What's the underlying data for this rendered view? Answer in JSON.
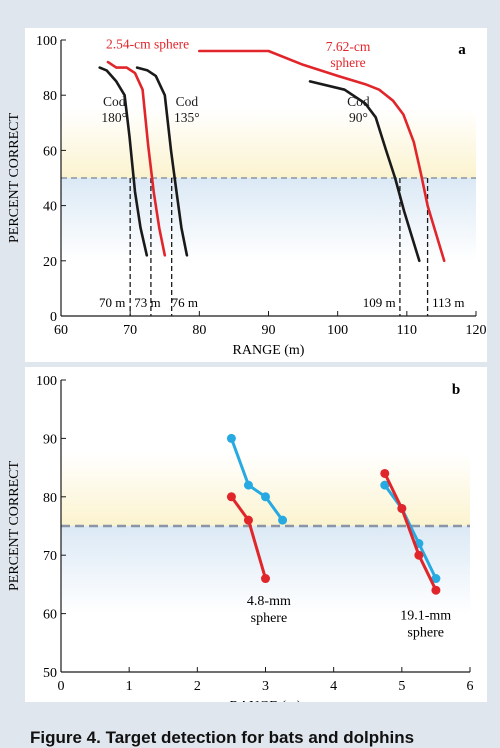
{
  "caption": "Figure 4. Target detection for bats and dolphins",
  "colors": {
    "red": "#e1262b",
    "black": "#1a1a1a",
    "blue": "#27aae1",
    "threshold_dash": "#8a96a6",
    "band_yellow": "#fbf3cf",
    "band_blue": "#dbe9f5"
  },
  "chart_data": [
    {
      "type": "line",
      "panel_label": "a",
      "xlabel": "RANGE (m)",
      "ylabel": "PERCENT CORRECT",
      "xlim": [
        60,
        120
      ],
      "ylim": [
        0,
        100
      ],
      "xticks": [
        60,
        70,
        80,
        90,
        100,
        110,
        120
      ],
      "yticks": [
        0,
        20,
        40,
        60,
        80,
        100
      ],
      "threshold": 50,
      "grid": false,
      "series": [
        {
          "name": "2.54-cm sphere",
          "color": "red",
          "points": [
            [
              66.8,
              92
            ],
            [
              68.0,
              90
            ],
            [
              69.5,
              90
            ],
            [
              70.7,
              88
            ],
            [
              71.8,
              82
            ],
            [
              72.6,
              62
            ],
            [
              73.4,
              45
            ],
            [
              74.2,
              32
            ],
            [
              75.0,
              22
            ]
          ]
        },
        {
          "name": "Cod 180°",
          "color": "black",
          "points": [
            [
              65.6,
              90
            ],
            [
              66.6,
              89
            ],
            [
              68.0,
              85
            ],
            [
              69.2,
              80
            ],
            [
              69.9,
              65
            ],
            [
              70.7,
              45
            ],
            [
              71.5,
              32
            ],
            [
              72.4,
              22
            ]
          ]
        },
        {
          "name": "Cod 135°",
          "color": "black",
          "points": [
            [
              71.0,
              90
            ],
            [
              72.5,
              89
            ],
            [
              73.7,
              87
            ],
            [
              75.0,
              80
            ],
            [
              75.9,
              60
            ],
            [
              76.7,
              45
            ],
            [
              77.4,
              32
            ],
            [
              78.2,
              22
            ]
          ]
        },
        {
          "name": "7.62-cm sphere",
          "color": "red",
          "points": [
            [
              80,
              96
            ],
            [
              90,
              96
            ],
            [
              95,
              91
            ],
            [
              100,
              87
            ],
            [
              104,
              84
            ],
            [
              106,
              82
            ],
            [
              108,
              78
            ],
            [
              109.5,
              73
            ],
            [
              111,
              63
            ],
            [
              112,
              52
            ],
            [
              113,
              40
            ],
            [
              114.2,
              30
            ],
            [
              115.4,
              20
            ]
          ]
        },
        {
          "name": "Cod 90°",
          "color": "black",
          "points": [
            [
              96,
              85
            ],
            [
              101,
              82
            ],
            [
              104,
              77
            ],
            [
              105.5,
              72
            ],
            [
              107,
              60
            ],
            [
              108.3,
              50
            ],
            [
              109.6,
              38
            ],
            [
              110.7,
              29
            ],
            [
              111.8,
              20
            ]
          ]
        }
      ],
      "series_labels": [
        {
          "series": 0,
          "lines": [
            "2.54-cm sphere"
          ],
          "x": 66.5,
          "y": 97
        },
        {
          "series": 1,
          "lines": [
            "Cod",
            "180°"
          ],
          "x": 67.7,
          "y": 76
        },
        {
          "series": 2,
          "lines": [
            "Cod",
            "135°"
          ],
          "x": 78.2,
          "y": 76
        },
        {
          "series": 3,
          "lines": [
            "7.62-cm",
            "sphere"
          ],
          "x": 101.5,
          "y": 96
        },
        {
          "series": 4,
          "lines": [
            "Cod",
            "90°"
          ],
          "x": 103,
          "y": 76
        }
      ],
      "thresholds": [
        {
          "x": 70,
          "label": "70 m",
          "label_x": 67.4
        },
        {
          "x": 73,
          "label": "73 m",
          "label_x": 72.5
        },
        {
          "x": 76,
          "label": "76 m",
          "label_x": 77.9
        },
        {
          "x": 109,
          "label": "109 m",
          "label_x": 106.0
        },
        {
          "x": 113,
          "label": "113 m",
          "label_x": 116.0
        }
      ]
    },
    {
      "type": "line",
      "panel_label": "b",
      "xlabel": "RANGE (m)",
      "ylabel": "PERCENT CORRECT",
      "xlim": [
        0,
        6
      ],
      "ylim": [
        50,
        100
      ],
      "xticks": [
        0,
        1,
        2,
        3,
        4,
        5,
        6
      ],
      "yticks": [
        50,
        60,
        70,
        80,
        90,
        100
      ],
      "threshold": 75,
      "grid": false,
      "series": [
        {
          "color": "blue",
          "points": [
            [
              2.5,
              90
            ],
            [
              2.75,
              82
            ],
            [
              3.0,
              80
            ],
            [
              3.25,
              76
            ]
          ]
        },
        {
          "color": "red",
          "points": [
            [
              2.5,
              80
            ],
            [
              2.75,
              76
            ],
            [
              3.0,
              66
            ]
          ]
        },
        {
          "color": "blue",
          "points": [
            [
              4.75,
              82
            ],
            [
              5.0,
              78
            ],
            [
              5.25,
              72
            ],
            [
              5.5,
              66
            ]
          ]
        },
        {
          "color": "red",
          "points": [
            [
              4.75,
              84
            ],
            [
              5.0,
              78
            ],
            [
              5.25,
              70
            ],
            [
              5.5,
              64
            ]
          ]
        }
      ],
      "annotations": [
        {
          "lines": [
            "4.8-mm",
            "sphere"
          ],
          "x": 3.05,
          "y": 61.5
        },
        {
          "lines": [
            "19.1-mm",
            "sphere"
          ],
          "x": 5.35,
          "y": 59.0
        }
      ]
    }
  ]
}
